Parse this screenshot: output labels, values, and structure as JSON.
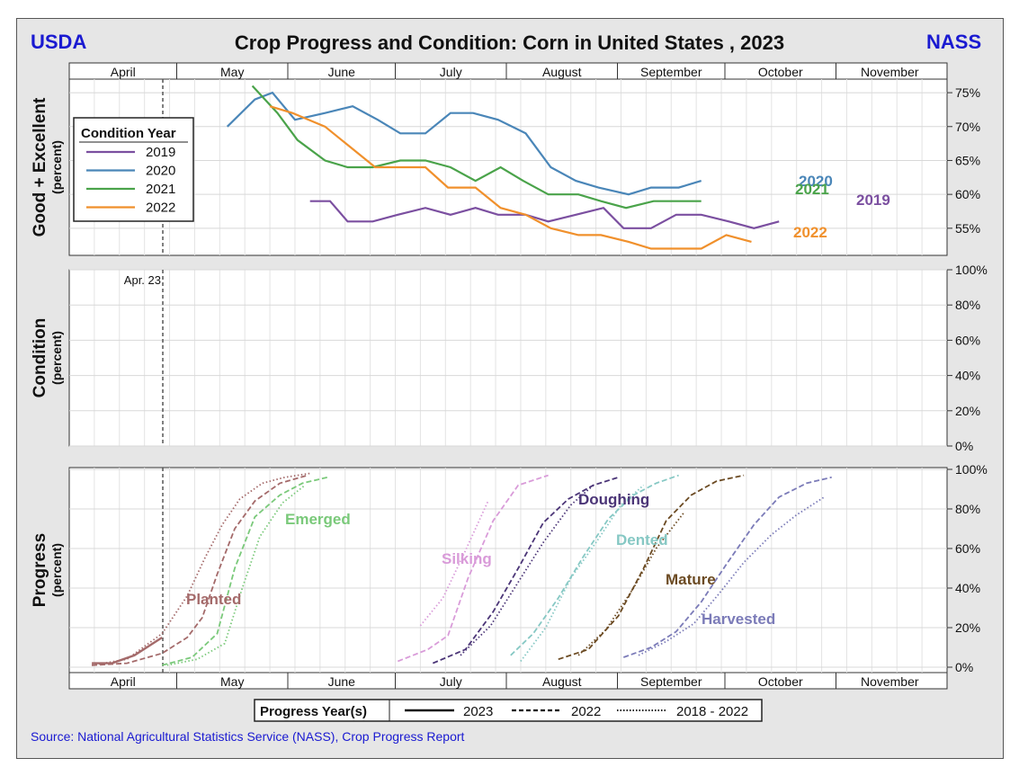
{
  "header": {
    "left": "USDA",
    "title": "Crop Progress and Condition: Corn in United States , 2023",
    "right": "NASS"
  },
  "source": "Source: National Agricultural Statistics Service (NASS), Crop Progress Report",
  "colors": {
    "y2019": "#7b4fa0",
    "y2020": "#4a86b8",
    "y2021": "#4aa34a",
    "y2022": "#f0902c",
    "planted": "#a46a6a",
    "emerged": "#7ac97a",
    "silking": "#d99bd9",
    "doughing": "#4b3577",
    "dented": "#86c8c4",
    "mature": "#6b4a22",
    "harvested": "#7b7bb8",
    "frame_blue": "#1a1ad1"
  },
  "months": [
    "April",
    "May",
    "June",
    "July",
    "August",
    "September",
    "October",
    "November"
  ],
  "reference_line": {
    "label": "Apr. 23",
    "x": 3.73
  },
  "chart_data": [
    {
      "type": "line",
      "panel": "good_excellent",
      "ylabel": "Good + Excellent",
      "ylabel_sub": "(percent)",
      "ylim": [
        51,
        77
      ],
      "yticks": [
        "55%",
        "60%",
        "65%",
        "70%",
        "75%"
      ],
      "ytick_values": [
        55,
        60,
        65,
        70,
        75
      ],
      "x_unit": "week index from Apr 1 (1 = 1 week)",
      "legend_title": "Condition Year",
      "series": [
        {
          "name": "2019",
          "label": "2019",
          "color_key": "y2019",
          "x": [
            9.6,
            10.4,
            11.1,
            12.1,
            13.1,
            14.2,
            15.2,
            16.2,
            17.1,
            18.2,
            19.1,
            20.2,
            21.3,
            22.1,
            23.2,
            24.2,
            25.2,
            26.3,
            27.3,
            28.3
          ],
          "y": [
            59,
            59,
            56,
            56,
            57,
            58,
            57,
            58,
            57,
            57,
            56,
            57,
            58,
            55,
            55,
            57,
            57,
            56,
            55,
            56
          ]
        },
        {
          "name": "2020",
          "label": "2020",
          "color_key": "y2020",
          "x": [
            6.3,
            7.4,
            8.1,
            9.0,
            10.2,
            11.3,
            12.3,
            13.2,
            14.2,
            15.2,
            16.1,
            17.1,
            18.2,
            19.2,
            20.2,
            21.1,
            22.3,
            23.2,
            24.3,
            25.2
          ],
          "y": [
            70,
            74,
            75,
            71,
            72,
            73,
            71,
            69,
            69,
            72,
            72,
            71,
            69,
            64,
            62,
            61,
            60,
            61,
            61,
            62
          ]
        },
        {
          "name": "2021",
          "label": "2021",
          "color_key": "y2021",
          "x": [
            7.3,
            8.3,
            9.1,
            10.2,
            11.1,
            12.1,
            13.2,
            14.2,
            15.2,
            16.2,
            17.2,
            18.1,
            19.1,
            20.3,
            21.2,
            22.2,
            23.3,
            24.3,
            25.2
          ],
          "y": [
            76,
            72,
            68,
            65,
            64,
            64,
            65,
            65,
            64,
            62,
            64,
            62,
            60,
            60,
            59,
            58,
            59,
            59,
            59
          ]
        },
        {
          "name": "2022",
          "label": "2022",
          "color_key": "y2022",
          "x": [
            8.0,
            8.9,
            10.2,
            11.2,
            12.2,
            13.2,
            14.2,
            15.1,
            16.2,
            17.2,
            18.2,
            19.2,
            20.3,
            21.2,
            22.3,
            23.2,
            24.2,
            25.2,
            26.2,
            27.2
          ],
          "y": [
            73,
            72,
            70,
            67,
            64,
            64,
            64,
            61,
            61,
            58,
            57,
            55,
            54,
            54,
            53,
            52,
            52,
            52,
            54,
            53
          ]
        }
      ],
      "series_end_labels": [
        "2019",
        "2020",
        "2021",
        "2022"
      ]
    },
    {
      "type": "line",
      "panel": "condition",
      "ylabel": "Condition",
      "ylabel_sub": "(percent)",
      "ylim": [
        0,
        100
      ],
      "yticks": [
        "0%",
        "20%",
        "40%",
        "60%",
        "80%",
        "100%"
      ],
      "ytick_values": [
        0,
        20,
        40,
        60,
        80,
        100
      ],
      "series": []
    },
    {
      "type": "line",
      "panel": "progress",
      "ylabel": "Progress",
      "ylabel_sub": "(percent)",
      "ylim": [
        -2,
        100
      ],
      "yticks": [
        "0%",
        "20%",
        "40%",
        "60%",
        "80%",
        "100%"
      ],
      "ytick_values": [
        0,
        20,
        40,
        60,
        80,
        100
      ],
      "legend_title": "Progress Year(s)",
      "legend_entries": [
        "2023",
        "2022",
        "2018 - 2022"
      ],
      "series": [
        {
          "name": "Planted",
          "label": "Planted",
          "color_key": "planted",
          "style": "solid",
          "x": [
            0.9,
            1.7,
            2.6,
            3.7
          ],
          "y": [
            2,
            2,
            6,
            15
          ]
        },
        {
          "name": "Planted",
          "color_key": "planted",
          "style": "dash",
          "x": [
            0.9,
            2.3,
            3.7,
            4.7,
            5.3,
            5.9,
            6.6,
            7.4,
            8.4,
            9.5
          ],
          "y": [
            1,
            2,
            7,
            15,
            25,
            47,
            70,
            84,
            93,
            97
          ]
        },
        {
          "name": "Planted",
          "color_key": "planted",
          "style": "dot",
          "x": [
            0.9,
            2.3,
            3.7,
            4.7,
            5.4,
            6.1,
            6.8,
            7.7,
            8.6,
            9.6
          ],
          "y": [
            1,
            4,
            17,
            36,
            55,
            72,
            85,
            93,
            96,
            98
          ]
        },
        {
          "name": "Emerged",
          "label": "Emerged",
          "color_key": "emerged",
          "style": "dash",
          "x": [
            3.7,
            4.9,
            5.9,
            6.6,
            7.4,
            8.4,
            9.3,
            10.3
          ],
          "y": [
            1,
            5,
            17,
            50,
            76,
            87,
            93,
            96
          ]
        },
        {
          "name": "Emerged",
          "color_key": "emerged",
          "style": "dot",
          "x": [
            3.9,
            5.1,
            6.2,
            6.9,
            7.6,
            8.5,
            9.4
          ],
          "y": [
            1,
            4,
            12,
            40,
            66,
            83,
            92
          ]
        },
        {
          "name": "Silking",
          "label": "Silking",
          "color_key": "silking",
          "style": "dash",
          "x": [
            13.1,
            14.3,
            15.1,
            15.9,
            16.9,
            17.9,
            19.1
          ],
          "y": [
            3,
            9,
            16,
            45,
            74,
            92,
            97
          ]
        },
        {
          "name": "Silking",
          "color_key": "silking",
          "style": "dot",
          "x": [
            14.0,
            14.9,
            15.8,
            16.7
          ],
          "y": [
            21,
            35,
            59,
            84
          ]
        },
        {
          "name": "Doughing",
          "label": "Doughing",
          "color_key": "doughing",
          "style": "dash",
          "x": [
            14.5,
            15.8,
            16.9,
            17.9,
            18.9,
            19.9,
            20.9,
            21.9
          ],
          "y": [
            2,
            9,
            28,
            50,
            73,
            85,
            92,
            96
          ]
        },
        {
          "name": "Doughing",
          "color_key": "doughing",
          "style": "dot",
          "x": [
            15.6,
            16.8,
            17.9,
            18.9,
            20.0,
            20.9
          ],
          "y": [
            6,
            21,
            43,
            63,
            82,
            92
          ]
        },
        {
          "name": "Dented",
          "label": "Dented",
          "color_key": "dented",
          "style": "dash",
          "x": [
            17.6,
            18.5,
            19.5,
            20.5,
            21.5,
            22.5,
            23.4,
            24.3
          ],
          "y": [
            6,
            17,
            35,
            56,
            75,
            87,
            93,
            97
          ]
        },
        {
          "name": "Dented",
          "color_key": "dented",
          "style": "dot",
          "x": [
            18.0,
            19.0,
            20.0,
            21.0,
            22.0,
            22.9
          ],
          "y": [
            3,
            20,
            45,
            63,
            82,
            92
          ]
        },
        {
          "name": "Mature",
          "label": "Mature",
          "color_key": "mature",
          "style": "dash",
          "x": [
            19.5,
            20.7,
            21.9,
            22.9,
            23.8,
            24.8,
            25.8,
            26.9
          ],
          "y": [
            4,
            9,
            26,
            50,
            74,
            87,
            94,
            97
          ]
        },
        {
          "name": "Mature",
          "color_key": "mature",
          "style": "dot",
          "x": [
            20.3,
            21.4,
            22.5,
            23.4,
            24.5
          ],
          "y": [
            6,
            19,
            40,
            60,
            78
          ]
        },
        {
          "name": "Harvested",
          "label": "Harvested",
          "color_key": "harvested",
          "style": "dash",
          "x": [
            22.1,
            23.2,
            24.2,
            25.2,
            26.2,
            27.3,
            28.3,
            29.4,
            30.4
          ],
          "y": [
            5,
            10,
            18,
            33,
            52,
            72,
            86,
            93,
            96
          ]
        },
        {
          "name": "Harvested",
          "color_key": "harvested",
          "style": "dot",
          "x": [
            22.7,
            23.8,
            24.9,
            25.9,
            26.9,
            28.0,
            29.0,
            30.1
          ],
          "y": [
            6,
            13,
            22,
            37,
            53,
            67,
            77,
            86
          ]
        }
      ]
    }
  ]
}
